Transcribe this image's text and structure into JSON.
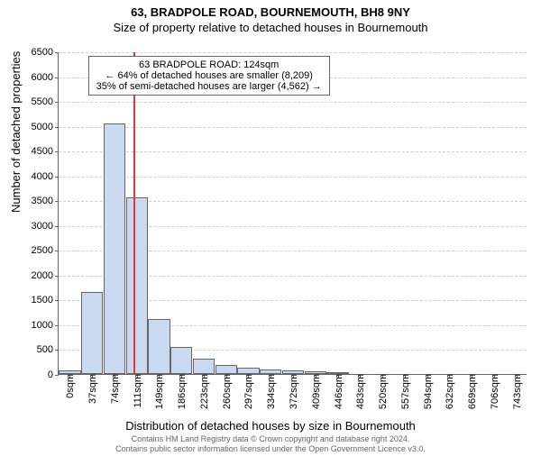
{
  "title": "63, BRADPOLE ROAD, BOURNEMOUTH, BH8 9NY",
  "subtitle": "Size of property relative to detached houses in Bournemouth",
  "xlabel": "Distribution of detached houses by size in Bournemouth",
  "ylabel": "Number of detached properties",
  "chart": {
    "type": "bar",
    "ylim": [
      0,
      6500
    ],
    "ytick_step": 500,
    "categories": [
      "0sqm",
      "37sqm",
      "74sqm",
      "111sqm",
      "149sqm",
      "186sqm",
      "223sqm",
      "260sqm",
      "297sqm",
      "334sqm",
      "372sqm",
      "409sqm",
      "446sqm",
      "483sqm",
      "520sqm",
      "557sqm",
      "594sqm",
      "632sqm",
      "669sqm",
      "706sqm",
      "743sqm"
    ],
    "values": [
      80,
      1650,
      5050,
      3550,
      1100,
      550,
      300,
      180,
      120,
      100,
      80,
      60,
      30,
      0,
      0,
      0,
      0,
      0,
      0,
      0,
      0
    ],
    "bar_color": "#c9d9f0",
    "bar_border": "#666666",
    "grid_color": "#d0d0d0",
    "background_color": "#ffffff",
    "axis_color": "#666666",
    "marker_line_color": "#d73a3a",
    "marker_line_x": 124,
    "x_range_sqm": [
      0,
      780
    ]
  },
  "annotation": {
    "line1": "63 BRADPOLE ROAD: 124sqm",
    "line2": "← 64% of detached houses are smaller (8,209)",
    "line3": "35% of semi-detached houses are larger (4,562) →"
  },
  "footer": {
    "line1": "Contains HM Land Registry data © Crown copyright and database right 2024.",
    "line2": "Contains public sector information licensed under the Open Government Licence v3.0."
  }
}
